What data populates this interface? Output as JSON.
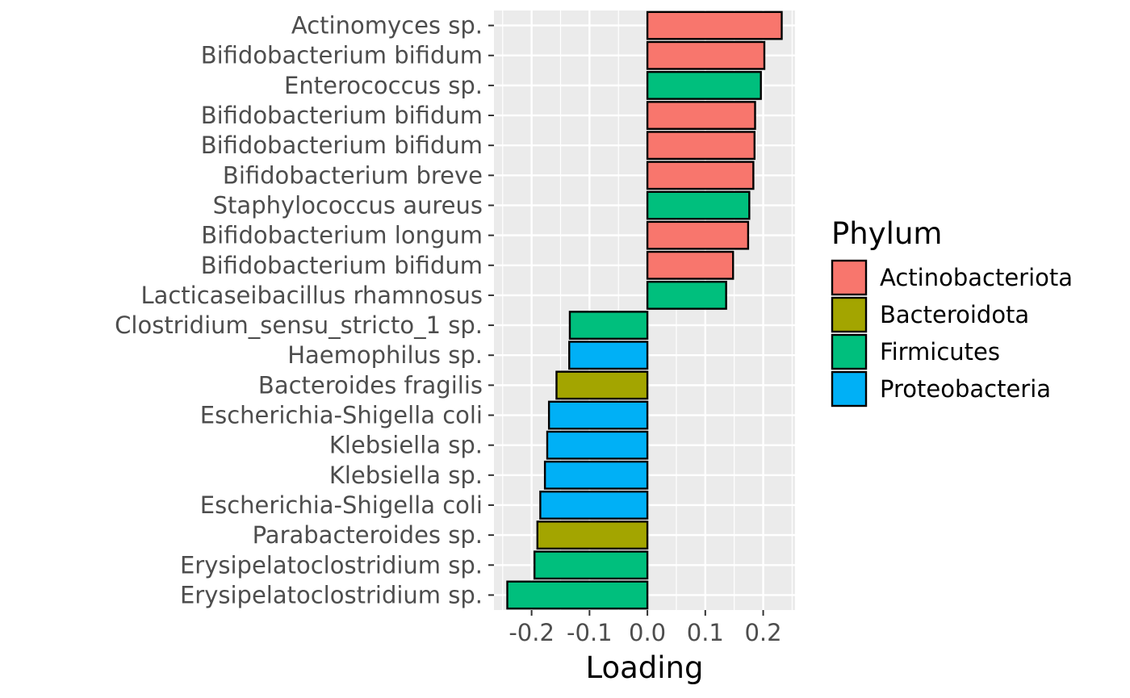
{
  "chart_data": {
    "type": "bar",
    "orientation": "horizontal",
    "xlabel": "Loading",
    "ylabel": "",
    "xlim": [
      -0.265,
      0.255
    ],
    "xticks": [
      -0.2,
      -0.1,
      0.0,
      0.1,
      0.2
    ],
    "xtick_labels": [
      "-0.2",
      "-0.1",
      "0.0",
      "0.1",
      "0.2"
    ],
    "grid": true,
    "legend": {
      "title": "Phylum",
      "placement": "right",
      "entries": [
        {
          "label": "Actinobacteriota",
          "color": "#F8766D"
        },
        {
          "label": "Bacteroidota",
          "color": "#A3A500"
        },
        {
          "label": "Firmicutes",
          "color": "#00BF7D"
        },
        {
          "label": "Proteobacteria",
          "color": "#00B0F6"
        }
      ]
    },
    "bars": [
      {
        "label": "Actinomyces sp.",
        "value": 0.232,
        "phylum": "Actinobacteriota"
      },
      {
        "label": "Bifidobacterium bifidum",
        "value": 0.202,
        "phylum": "Actinobacteriota"
      },
      {
        "label": "Enterococcus sp.",
        "value": 0.196,
        "phylum": "Firmicutes"
      },
      {
        "label": "Bifidobacterium bifidum",
        "value": 0.186,
        "phylum": "Actinobacteriota"
      },
      {
        "label": "Bifidobacterium bifidum",
        "value": 0.185,
        "phylum": "Actinobacteriota"
      },
      {
        "label": "Bifidobacterium breve",
        "value": 0.183,
        "phylum": "Actinobacteriota"
      },
      {
        "label": "Staphylococcus aureus",
        "value": 0.176,
        "phylum": "Firmicutes"
      },
      {
        "label": "Bifidobacterium longum",
        "value": 0.174,
        "phylum": "Actinobacteriota"
      },
      {
        "label": "Bifidobacterium bifidum",
        "value": 0.148,
        "phylum": "Actinobacteriota"
      },
      {
        "label": "Lacticaseibacillus rhamnosus",
        "value": 0.136,
        "phylum": "Firmicutes"
      },
      {
        "label": "Clostridium_sensu_stricto_1 sp.",
        "value": -0.134,
        "phylum": "Firmicutes"
      },
      {
        "label": "Haemophilus sp.",
        "value": -0.135,
        "phylum": "Proteobacteria"
      },
      {
        "label": "Bacteroides fragilis",
        "value": -0.157,
        "phylum": "Bacteroidota"
      },
      {
        "label": "Escherichia-Shigella coli",
        "value": -0.17,
        "phylum": "Proteobacteria"
      },
      {
        "label": "Klebsiella sp.",
        "value": -0.173,
        "phylum": "Proteobacteria"
      },
      {
        "label": "Klebsiella sp.",
        "value": -0.177,
        "phylum": "Proteobacteria"
      },
      {
        "label": "Escherichia-Shigella coli",
        "value": -0.185,
        "phylum": "Proteobacteria"
      },
      {
        "label": "Parabacteroides sp.",
        "value": -0.19,
        "phylum": "Bacteroidota"
      },
      {
        "label": "Erysipelatoclostridium sp.",
        "value": -0.195,
        "phylum": "Firmicutes"
      },
      {
        "label": "Erysipelatoclostridium sp.",
        "value": -0.242,
        "phylum": "Firmicutes"
      }
    ]
  }
}
